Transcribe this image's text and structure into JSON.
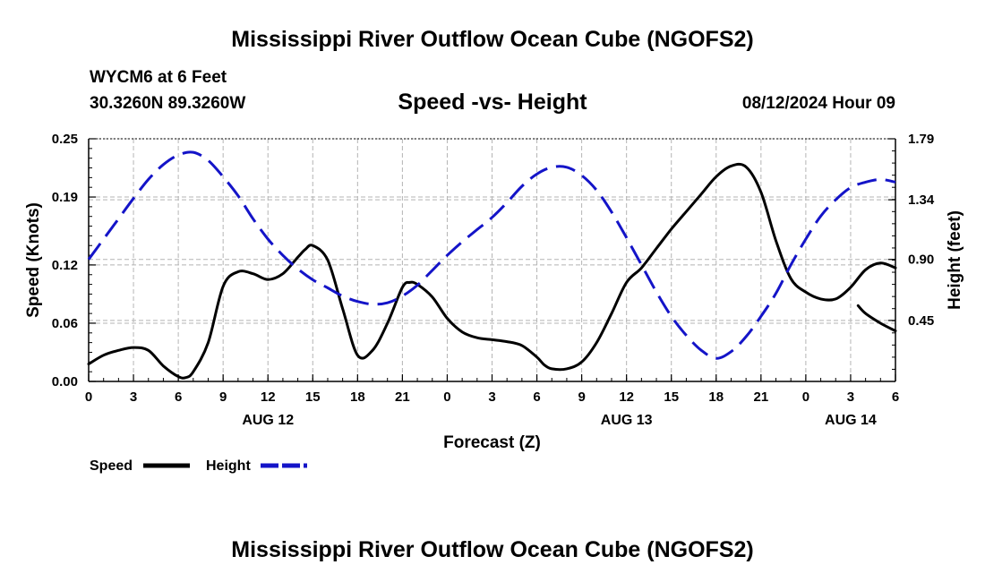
{
  "header": {
    "title": "Mississippi River Outflow Ocean Cube (NGOFS2)",
    "station": "WYCM6 at 6 Feet",
    "coords": "30.3260N  89.3260W",
    "subtitle": "Speed -vs- Height",
    "datetime": "08/12/2024 Hour 09"
  },
  "footer": {
    "title": "Mississippi River Outflow Ocean Cube (NGOFS2)"
  },
  "chart_data": {
    "type": "line",
    "title": "Speed -vs- Height",
    "xlabel": "Forecast (Z)",
    "ylabel": "Speed (Knots)",
    "y2label": "Height (feet)",
    "x_range": [
      0,
      54
    ],
    "ylim": [
      0,
      0.25
    ],
    "y2lim": [
      0,
      1.79
    ],
    "x_ticks": [
      0,
      3,
      6,
      9,
      12,
      15,
      18,
      21,
      24,
      27,
      30,
      33,
      36,
      39,
      42,
      45,
      48,
      51,
      54
    ],
    "x_tick_labels": [
      "0",
      "3",
      "6",
      "9",
      "12",
      "15",
      "18",
      "21",
      "0",
      "3",
      "6",
      "9",
      "12",
      "15",
      "18",
      "21",
      "0",
      "3",
      "6"
    ],
    "date_labels": [
      {
        "x": 12,
        "label": "AUG 12"
      },
      {
        "x": 36,
        "label": "AUG 13"
      },
      {
        "x": 51,
        "label": "AUG 14"
      }
    ],
    "y_ticks": [
      0.0,
      0.06,
      0.12,
      0.19,
      0.25
    ],
    "y_tick_labels": [
      "0.00",
      "0.06",
      "0.12",
      "0.19",
      "0.25"
    ],
    "y2_ticks": [
      0.45,
      0.9,
      1.34,
      1.79
    ],
    "y2_tick_labels": [
      "0.45",
      "0.90",
      "1.34",
      "1.79"
    ],
    "grid": true,
    "series": [
      {
        "name": "Speed",
        "axis": "left",
        "color": "#000000",
        "dash": "solid",
        "x": [
          0,
          1,
          2,
          3,
          4,
          5,
          6,
          6.5,
          7,
          8,
          9,
          10,
          11,
          12,
          13,
          14,
          14.5,
          15,
          16,
          17,
          18,
          19,
          20,
          21,
          21.5,
          22,
          23,
          24,
          25,
          26,
          27,
          28,
          29,
          30,
          30.5,
          31,
          32,
          33,
          34,
          35,
          36,
          37,
          38,
          39,
          40,
          41,
          42,
          43,
          44,
          45,
          46,
          47,
          48,
          49,
          50,
          51,
          52,
          53,
          54
        ],
        "values": [
          0.018,
          0.027,
          0.032,
          0.035,
          0.032,
          0.016,
          0.005,
          0.004,
          0.01,
          0.04,
          0.098,
          0.113,
          0.111,
          0.105,
          0.111,
          0.128,
          0.136,
          0.14,
          0.125,
          0.075,
          0.027,
          0.032,
          0.06,
          0.097,
          0.102,
          0.1,
          0.087,
          0.065,
          0.051,
          0.045,
          0.043,
          0.041,
          0.037,
          0.025,
          0.017,
          0.013,
          0.013,
          0.02,
          0.04,
          0.07,
          0.102,
          0.117,
          0.137,
          0.157,
          0.175,
          0.193,
          0.211,
          0.222,
          0.221,
          0.195,
          0.145,
          0.106,
          0.092,
          0.085,
          0.085,
          0.097,
          0.115,
          0.122,
          0.117
        ],
        "x2": [
          51.5,
          52,
          53,
          54
        ],
        "values2": [
          0.078,
          0.07,
          0.06,
          0.052
        ]
      },
      {
        "name": "Height",
        "axis": "right",
        "color": "#1414c8",
        "dash": "dashed",
        "x": [
          0,
          1,
          2,
          3,
          4,
          5,
          6,
          7,
          8,
          9,
          10,
          11,
          12,
          13,
          14,
          15,
          16,
          17,
          18,
          19,
          20,
          21,
          22,
          23,
          24,
          25,
          26,
          27,
          28,
          29,
          30,
          31,
          32,
          33,
          34,
          35,
          36,
          37,
          38,
          39,
          40,
          41,
          42,
          43,
          44,
          45,
          46,
          47,
          48,
          49,
          50,
          51,
          52,
          53,
          54
        ],
        "values": [
          0.9,
          1.05,
          1.2,
          1.35,
          1.49,
          1.6,
          1.67,
          1.69,
          1.63,
          1.51,
          1.37,
          1.2,
          1.05,
          0.93,
          0.83,
          0.75,
          0.69,
          0.63,
          0.59,
          0.57,
          0.58,
          0.63,
          0.71,
          0.82,
          0.93,
          1.03,
          1.12,
          1.21,
          1.32,
          1.44,
          1.53,
          1.58,
          1.58,
          1.52,
          1.41,
          1.25,
          1.06,
          0.86,
          0.66,
          0.48,
          0.34,
          0.23,
          0.17,
          0.22,
          0.33,
          0.48,
          0.65,
          0.86,
          1.05,
          1.22,
          1.34,
          1.43,
          1.47,
          1.49,
          1.47
        ]
      }
    ],
    "legend": [
      {
        "label": "Speed",
        "color": "#000000",
        "dash": "solid"
      },
      {
        "label": "Height",
        "color": "#1414c8",
        "dash": "dashed"
      }
    ],
    "legend_position": "bottom-left"
  }
}
